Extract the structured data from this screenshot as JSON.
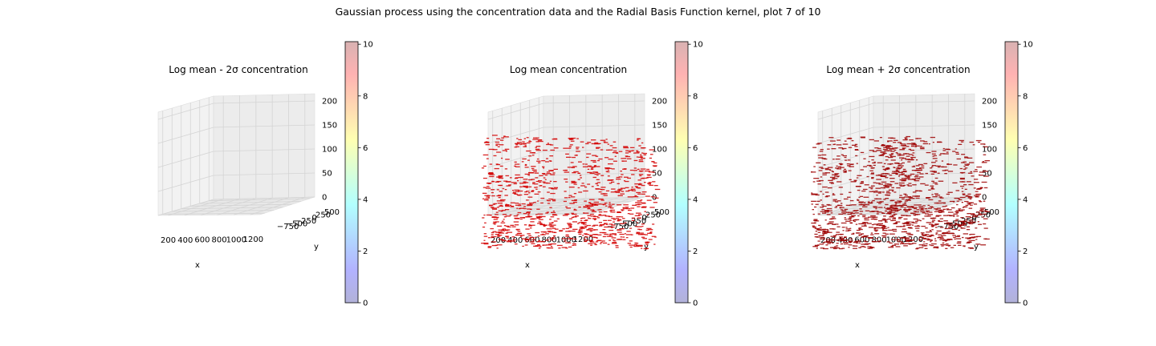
{
  "suptitle": "Gaussian process using the  concentration data and the Radial Basis Function kernel, plot 7 of 10",
  "colors": {
    "marker_lower": "#b80000",
    "marker_mean": "#d40000",
    "marker_upper": "#9e0000",
    "pane": "#f2f2f2",
    "grid": "#d4d4d4"
  },
  "colormap": {
    "name": "jet",
    "alpha": 0.3,
    "stops": [
      "#00007f",
      "#0000ff",
      "#007fff",
      "#00ffff",
      "#7fff7f",
      "#ffff00",
      "#ff7f00",
      "#ff0000",
      "#7f0000"
    ]
  },
  "chart_data": [
    {
      "type": "scatter",
      "projection": "3d",
      "title": "Log mean - 2σ concentration",
      "xlabel": "x",
      "ylabel": "y",
      "zlabel": "",
      "x_ticks": [
        "200",
        "400",
        "600",
        "800",
        "1000",
        "1200"
      ],
      "y_ticks": [
        "−750",
        "−500",
        "−250",
        "0",
        "250",
        "500"
      ],
      "z_ticks": [
        "0",
        "50",
        "100",
        "150",
        "200"
      ],
      "xlim": [
        100,
        1300
      ],
      "ylim": [
        -900,
        650
      ],
      "zlim": [
        0,
        215
      ],
      "points_visible": false,
      "colorbar": {
        "ticks": [
          "0",
          "2",
          "4",
          "6",
          "8",
          "10"
        ],
        "vmin": 0,
        "vmax": 10.1
      }
    },
    {
      "type": "scatter",
      "projection": "3d",
      "title": "Log mean concentration",
      "xlabel": "x",
      "ylabel": "y",
      "zlabel": "",
      "x_ticks": [
        "200",
        "400",
        "600",
        "800",
        "1000",
        "1200"
      ],
      "y_ticks": [
        "−750",
        "−500",
        "−250",
        "0",
        "250",
        "500"
      ],
      "z_ticks": [
        "0",
        "50",
        "100",
        "150",
        "200"
      ],
      "xlim": [
        100,
        1300
      ],
      "ylim": [
        -900,
        650
      ],
      "zlim": [
        0,
        215
      ],
      "points_visible": true,
      "colorbar": {
        "ticks": [
          "0",
          "2",
          "4",
          "6",
          "8",
          "10"
        ],
        "vmin": 0,
        "vmax": 10.1
      }
    },
    {
      "type": "scatter",
      "projection": "3d",
      "title": "Log mean + 2σ concentration",
      "xlabel": "x",
      "ylabel": "y",
      "zlabel": "",
      "x_ticks": [
        "200",
        "400",
        "600",
        "800",
        "1000",
        "1200"
      ],
      "y_ticks": [
        "−750",
        "−500",
        "−250",
        "0",
        "250",
        "500"
      ],
      "z_ticks": [
        "0",
        "50",
        "100",
        "150",
        "200"
      ],
      "xlim": [
        100,
        1300
      ],
      "ylim": [
        -900,
        650
      ],
      "zlim": [
        0,
        215
      ],
      "points_visible": true,
      "colorbar": {
        "ticks": [
          "0",
          "2",
          "4",
          "6",
          "8",
          "10"
        ],
        "vmin": 0,
        "vmax": 10.1
      }
    }
  ]
}
